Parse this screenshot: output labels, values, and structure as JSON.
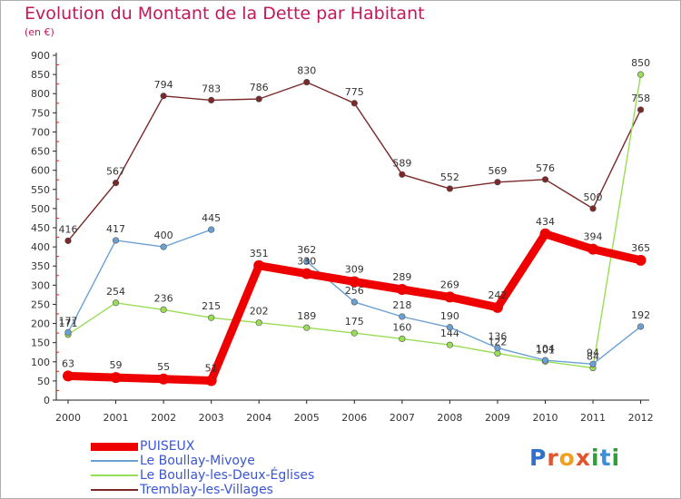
{
  "chart_data": {
    "type": "line",
    "title": "Evolution du Montant de la Dette par Habitant",
    "subtitle": "(en €)",
    "x": [
      "2000",
      "2001",
      "2002",
      "2003",
      "2004",
      "2005",
      "2006",
      "2007",
      "2008",
      "2009",
      "2010",
      "2011",
      "2012"
    ],
    "ylim": [
      0,
      900
    ],
    "yticks": [
      0,
      50,
      100,
      150,
      200,
      250,
      300,
      350,
      400,
      450,
      500,
      550,
      600,
      650,
      700,
      750,
      800,
      850,
      900
    ],
    "grid": false,
    "legend_position": "bottom-left",
    "series": [
      {
        "name": "PUISEUX",
        "color": "#ee0000",
        "values": [
          63,
          59,
          55,
          51,
          351,
          330,
          309,
          289,
          269,
          242,
          434,
          394,
          365
        ]
      },
      {
        "name": "Le Boullay-Mivoye",
        "color": "#6aa0d4",
        "values": [
          177,
          417,
          400,
          445,
          null,
          362,
          256,
          218,
          190,
          136,
          104,
          94,
          192
        ]
      },
      {
        "name": "Le Boullay-les-Deux-Églises",
        "color": "#99dd55",
        "values": [
          171,
          254,
          236,
          215,
          202,
          189,
          175,
          160,
          144,
          122,
          101,
          84,
          850
        ]
      },
      {
        "name": "Tremblay-les-Villages",
        "color": "#7a2828",
        "values": [
          416,
          567,
          794,
          783,
          786,
          830,
          775,
          589,
          552,
          569,
          576,
          500,
          758
        ]
      }
    ]
  },
  "logo_text": "Proxiti"
}
